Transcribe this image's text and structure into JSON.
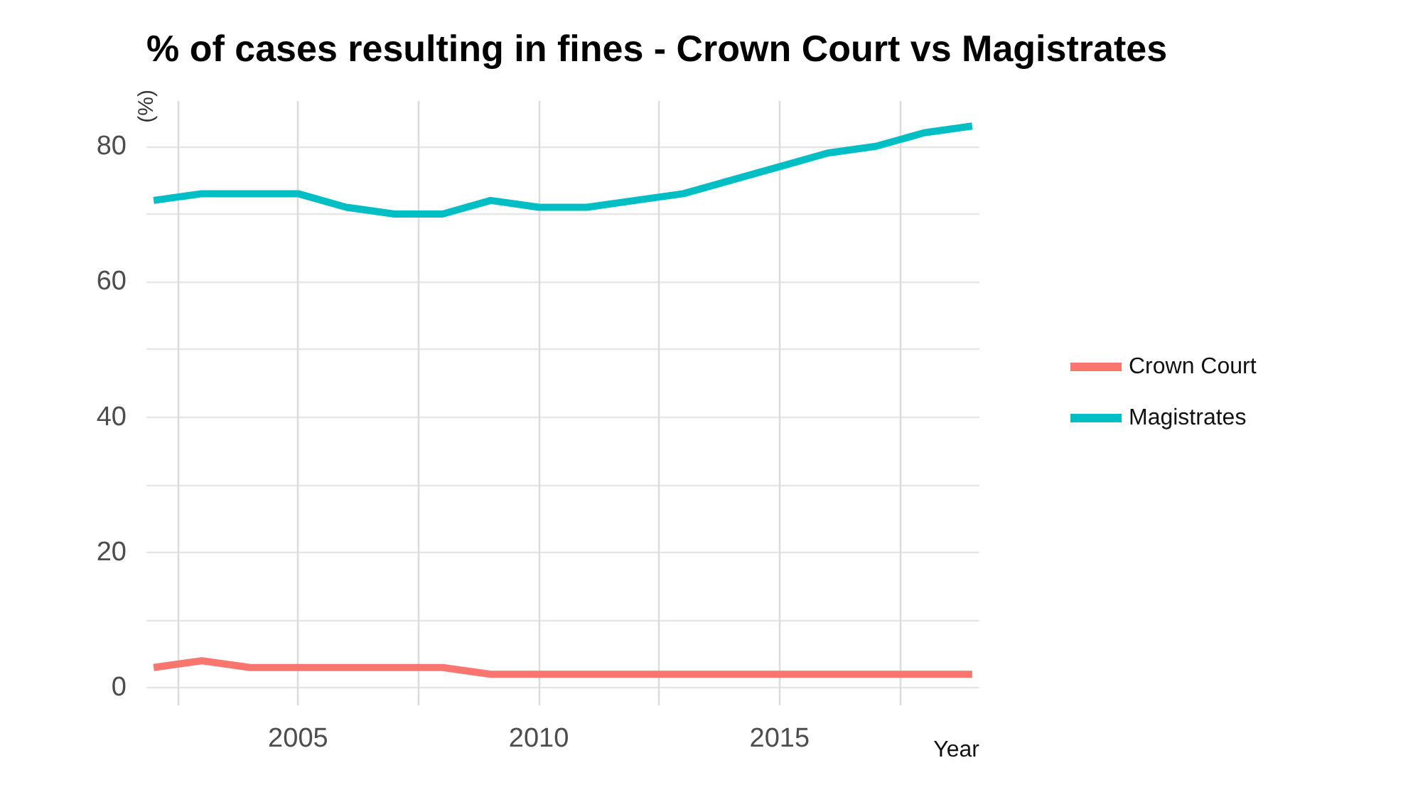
{
  "chart_data": {
    "type": "line",
    "title": "% of cases resulting in fines - Crown Court vs Magistrates",
    "xlabel": "Year",
    "ylabel": "(%)",
    "x": [
      2002,
      2003,
      2004,
      2005,
      2006,
      2007,
      2008,
      2009,
      2010,
      2011,
      2012,
      2013,
      2014,
      2015,
      2016,
      2017,
      2018,
      2019
    ],
    "series": [
      {
        "name": "Crown Court",
        "color": "#f8766d",
        "values": [
          3,
          4,
          3,
          3,
          3,
          3,
          3,
          2,
          2,
          2,
          2,
          2,
          2,
          2,
          2,
          2,
          2,
          2
        ]
      },
      {
        "name": "Magistrates",
        "color": "#00bfc4",
        "values": [
          72,
          73,
          73,
          73,
          71,
          70,
          70,
          72,
          71,
          71,
          72,
          73,
          75,
          77,
          79,
          80,
          82,
          83
        ]
      }
    ],
    "xlim": [
      2001.85,
      2019.15
    ],
    "ylim": [
      -2.6,
      86.7
    ],
    "xticks": [
      {
        "value": 2002.5,
        "label": null
      },
      2005,
      {
        "value": 2007.5,
        "label": null
      },
      2010,
      {
        "value": 2012.5,
        "label": null
      },
      2015,
      {
        "value": 2017.5,
        "label": null
      }
    ],
    "yticks": [
      0,
      {
        "value": 10,
        "label": null
      },
      20,
      {
        "value": 30,
        "label": null
      },
      40,
      {
        "value": 50,
        "label": null
      },
      60,
      {
        "value": 70,
        "label": null
      },
      80
    ],
    "grid": true,
    "legend": "right",
    "marker": "none",
    "line_style": "solid"
  }
}
